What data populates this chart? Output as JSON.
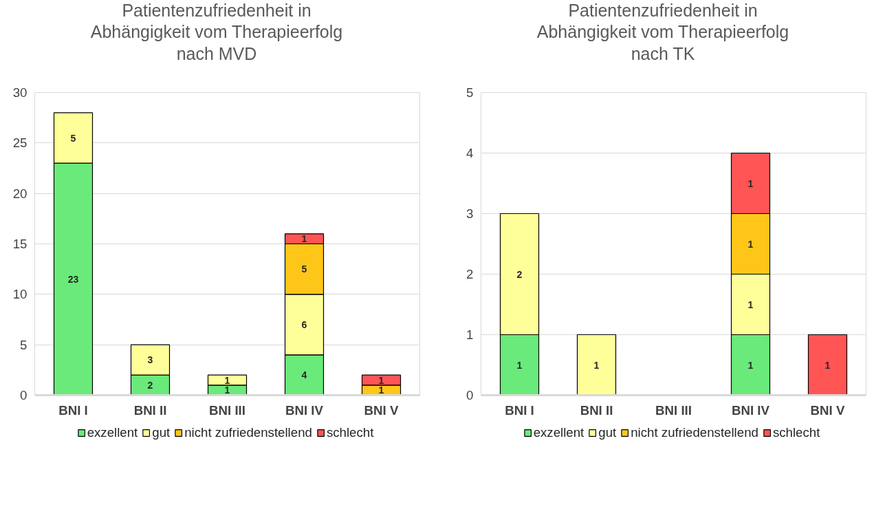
{
  "chart_data": [
    {
      "type": "bar",
      "stacked": true,
      "title": "Patientenzufriedenheit in Abhängigkeit vom Therapieerfolg nach MVD",
      "categories": [
        "BNI I",
        "BNI II",
        "BNI III",
        "BNI IV",
        "BNI V"
      ],
      "ylim": [
        0,
        30
      ],
      "yticks": [
        0,
        5,
        10,
        15,
        20,
        25,
        30
      ],
      "grid": "y",
      "legend": "bottom",
      "data_labels": true,
      "series": [
        {
          "name": "exzellent",
          "color": "#6aea7a",
          "values": [
            23,
            2,
            1,
            4,
            null
          ]
        },
        {
          "name": "gut",
          "color": "#ffff99",
          "values": [
            5,
            3,
            1,
            6,
            null
          ]
        },
        {
          "name": "nicht zufriedenstellend",
          "color": "#ffc61a",
          "values": [
            null,
            null,
            null,
            5,
            1
          ]
        },
        {
          "name": "schlecht",
          "color": "#ff5555",
          "values": [
            null,
            null,
            null,
            1,
            1
          ]
        }
      ]
    },
    {
      "type": "bar",
      "stacked": true,
      "title": "Patientenzufriedenheit in Abhängigkeit vom Therapieerfolg nach TK",
      "categories": [
        "BNI I",
        "BNI II",
        "BNI III",
        "BNI IV",
        "BNI V"
      ],
      "ylim": [
        0,
        5
      ],
      "yticks": [
        0,
        1,
        2,
        3,
        4,
        5
      ],
      "grid": "y",
      "legend": "bottom",
      "data_labels": true,
      "series": [
        {
          "name": "exzellent",
          "color": "#6aea7a",
          "values": [
            1,
            null,
            null,
            1,
            null
          ]
        },
        {
          "name": "gut",
          "color": "#ffff99",
          "values": [
            2,
            1,
            null,
            1,
            null
          ]
        },
        {
          "name": "nicht zufriedenstellend",
          "color": "#ffc61a",
          "values": [
            null,
            null,
            null,
            1,
            null
          ]
        },
        {
          "name": "schlecht",
          "color": "#ff5555",
          "values": [
            null,
            null,
            null,
            1,
            1
          ]
        }
      ]
    }
  ]
}
